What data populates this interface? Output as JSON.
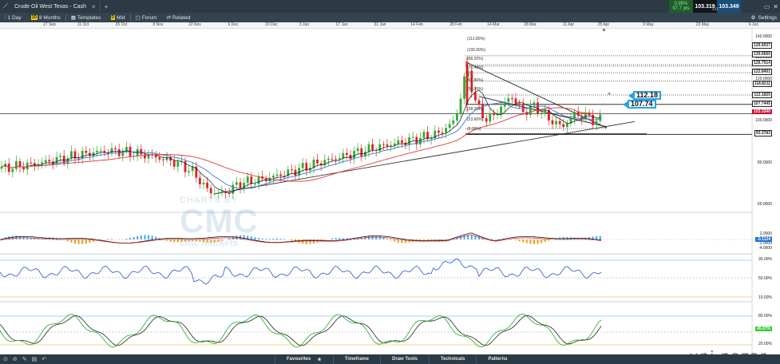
{
  "window": {
    "title": "Crude Oil West Texas - Cash",
    "close_glyph": "×",
    "plus_glyph": "+",
    "change_pct": "0.95%",
    "change_pts": "97.7 pts",
    "bid": "103.319",
    "ask": "103.349",
    "spread": "3.0"
  },
  "toolbar": {
    "interval": "1 Day",
    "range_badge": "1D",
    "range": "8 Months",
    "templates": "Templates",
    "price_badge": "D",
    "price": "Mid",
    "forum": "Forum",
    "related": "Related",
    "settings": "Settings"
  },
  "date_axis": [
    "27 Sep",
    "11 Oct",
    "25 Oct",
    "8 Nov",
    "22 Nov",
    "6 Dec",
    "20 Dec",
    "3 Jan",
    "17 Jan",
    "31 Jan",
    "14 Feb",
    "28 Feb",
    "14 Mar",
    "28 Mar",
    "11 Apr",
    "25 Apr",
    "9 May",
    "23 May",
    "6 Jun"
  ],
  "price_axis": {
    "levels": [
      "140.0000",
      "130.0000",
      "120.0000",
      "100.0000",
      "80.0000",
      "60.0000"
    ],
    "boxed": [
      "126.0037",
      "130.0650",
      "126.7014",
      "122.8401",
      "118.8211",
      "112.1825",
      "107.7445"
    ],
    "current": "103.3340",
    "fib_base": "93.3783"
  },
  "fib_labels": [
    "(112.80%)",
    "(100.00%)",
    "(88.20%)",
    "(76.40%)",
    "(61.80%)",
    "(50.00%)",
    "(38.20%)",
    "(23.60%)",
    "(0.00%)"
  ],
  "callouts": [
    "112.18",
    "107.74"
  ],
  "macd_axis": [
    "2.0000",
    "0.0000",
    "-2.0000",
    "-4.0000"
  ],
  "macd_value": "-0.1124",
  "rsi_axis": [
    "90.00%",
    "50.00%",
    "10.00%"
  ],
  "stoch_axis": [
    "80.00%",
    "20.00%"
  ],
  "stoch_value": "45.07%",
  "watermark": {
    "small": "CHARTS BY",
    "big": "CMC",
    "sub": "cmc markets"
  },
  "corner_watermark": "uni nazar",
  "bottom_tabs": [
    "Favourites",
    "Timeframe",
    "Draw Tools",
    "Technicals",
    "Patterns"
  ],
  "favourites_star": "★",
  "colors": {
    "bull": "#33aa33",
    "bear": "#dd2222",
    "ma_fast": "#3a78d8",
    "ma_slow": "#e23a3a",
    "rsi": "#2255cc",
    "stoch_k": "#22aa22",
    "stoch_d": "#222222"
  }
}
